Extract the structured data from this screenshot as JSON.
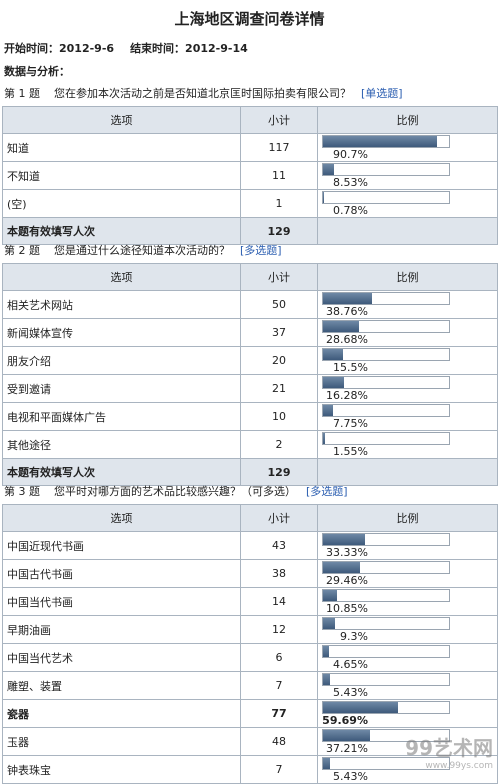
{
  "title": "上海地区调查问卷详情",
  "start": "开始时间：2012-9-6",
  "end": "结束时间：2012-9-14",
  "analysis": "数据与分析：",
  "columns": [
    "选项",
    "小计",
    "比例"
  ],
  "total_label": "本题有效填写人次",
  "questions": [
    {
      "number": "第 1 题",
      "text": "您在参加本次活动之前是否知道北京匡时国际拍卖有限公司？",
      "kind": "[单选题]",
      "top": 86,
      "rows": [
        {
          "option": "知道",
          "count": 117,
          "ratio": 90.7,
          "ratio_label": "90.7%"
        },
        {
          "option": "不知道",
          "count": 11,
          "ratio": 8.53,
          "ratio_label": "8.53%"
        },
        {
          "option": "(空)",
          "count": 1,
          "ratio": 0.78,
          "ratio_label": "0.78%"
        }
      ],
      "total": 129
    },
    {
      "number": "第 2 题",
      "text": "您是通过什么途径知道本次活动的？",
      "kind": "[多选题]",
      "top": 243,
      "rows": [
        {
          "option": "相关艺术网站",
          "count": 50,
          "ratio": 38.76,
          "ratio_label": "38.76%"
        },
        {
          "option": "新闻媒体宣传",
          "count": 37,
          "ratio": 28.68,
          "ratio_label": "28.68%"
        },
        {
          "option": "朋友介绍",
          "count": 20,
          "ratio": 15.5,
          "ratio_label": "15.5%"
        },
        {
          "option": "受到邀请",
          "count": 21,
          "ratio": 16.28,
          "ratio_label": "16.28%"
        },
        {
          "option": "电视和平面媒体广告",
          "count": 10,
          "ratio": 7.75,
          "ratio_label": "7.75%"
        },
        {
          "option": "其他途径",
          "count": 2,
          "ratio": 1.55,
          "ratio_label": "1.55%"
        }
      ],
      "total": 129
    },
    {
      "number": "第 3 题",
      "text": "您平时对哪方面的艺术品比较感兴趣？（可多选）",
      "kind": "[多选题]",
      "top": 484,
      "rows": [
        {
          "option": "中国近现代书画",
          "count": 43,
          "ratio": 33.33,
          "ratio_label": "33.33%"
        },
        {
          "option": "中国古代书画",
          "count": 38,
          "ratio": 29.46,
          "ratio_label": "29.46%"
        },
        {
          "option": "中国当代书画",
          "count": 14,
          "ratio": 10.85,
          "ratio_label": "10.85%"
        },
        {
          "option": "早期油画",
          "count": 12,
          "ratio": 9.3,
          "ratio_label": "9.3%"
        },
        {
          "option": "中国当代艺术",
          "count": 6,
          "ratio": 4.65,
          "ratio_label": "4.65%"
        },
        {
          "option": "雕塑、装置",
          "count": 7,
          "ratio": 5.43,
          "ratio_label": "5.43%"
        },
        {
          "option": "瓷器",
          "count": 77,
          "ratio": 59.69,
          "ratio_label": "59.69%",
          "bold": true
        },
        {
          "option": "玉器",
          "count": 48,
          "ratio": 37.21,
          "ratio_label": "37.21%"
        },
        {
          "option": "钟表珠宝",
          "count": 7,
          "ratio": 5.43,
          "ratio_label": "5.43%"
        }
      ]
    }
  ],
  "watermark": [
    "99艺术网",
    "www.99ys.com"
  ]
}
